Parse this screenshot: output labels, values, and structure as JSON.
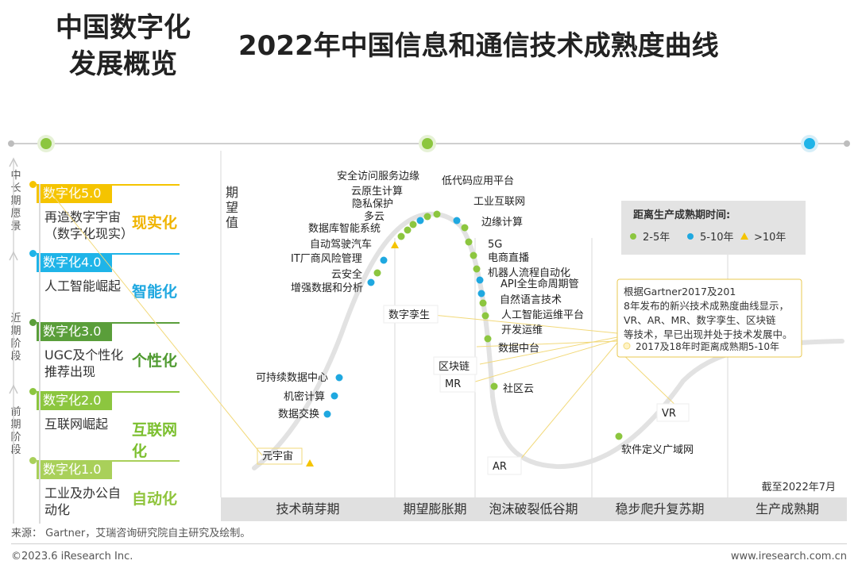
{
  "header": {
    "left_title_line1": "中国数字化",
    "left_title_line2": "发展概览",
    "main_title": "2022年中国信息和通信技术成熟度曲线"
  },
  "vertical_labels": {
    "mid_long": "中长期愿景",
    "near": "近期阶段",
    "early": "前期阶段"
  },
  "stages": [
    {
      "tag": "数字化5.0",
      "desc": "再造数字宇宙（数字化现实）",
      "keyword": "现实化",
      "color": "#f5c400",
      "kwcolor": "#f0b400"
    },
    {
      "tag": "数字化4.0",
      "desc": "人工智能崛起",
      "keyword": "智能化",
      "color": "#1fb4e8",
      "kwcolor": "#1fa8e0"
    },
    {
      "tag": "数字化3.0",
      "desc": "UGC及个性化推荐出现",
      "keyword": "个性化",
      "color": "#5a9e3a",
      "kwcolor": "#4f9a30"
    },
    {
      "tag": "数字化2.0",
      "desc": "互联网崛起",
      "keyword": "互联网化",
      "color": "#8cc63f",
      "kwcolor": "#7bbf2e"
    },
    {
      "tag": "数字化1.0",
      "desc": "工业及办公自动化",
      "keyword": "自动化",
      "color": "#a9d05a",
      "kwcolor": "#8fc43c"
    }
  ],
  "chart_data": {
    "type": "scatter",
    "title": "2022年中国信息和通信技术成熟度曲线",
    "ylabel": "期望值",
    "xlabel": "",
    "phases": [
      "技术萌芽期",
      "期望膨胀期",
      "泡沫破裂低谷期",
      "稳步爬升复苏期",
      "生产成熟期"
    ],
    "legend": {
      "title": "距离生产成熟期时间:",
      "items": [
        {
          "label": "2-5年",
          "color": "#8cc63f",
          "shape": "circle"
        },
        {
          "label": "5-10年",
          "color": "#1fa8e0",
          "shape": "circle"
        },
        {
          "label": ">10年",
          "color": "#f5c400",
          "shape": "triangle"
        }
      ]
    },
    "annotation": {
      "text": "根据Gartner2017及2018年发布的新兴技术成熟度曲线显示，VR、AR、MR、数字孪生、区块链等技术，早已出现并处于技术发展中。",
      "sub": "2017及18年时距离成熟期5-10年"
    },
    "as_of": "截至2022年7月",
    "points": [
      {
        "label": "元宇宙",
        "category": ">10年"
      },
      {
        "label": "数据交换",
        "category": "5-10年"
      },
      {
        "label": "机密计算",
        "category": "5-10年"
      },
      {
        "label": "可持续数据中心",
        "category": "5-10年"
      },
      {
        "label": "增强数据和分析",
        "category": "5-10年"
      },
      {
        "label": "云安全",
        "category": "2-5年"
      },
      {
        "label": "IT厂商风险管理",
        "category": "5-10年"
      },
      {
        "label": "自动驾驶汽车",
        "category": ">10年"
      },
      {
        "label": "数据库智能系统",
        "category": "2-5年"
      },
      {
        "label": "多云",
        "category": "2-5年"
      },
      {
        "label": "隐私保护",
        "category": "2-5年"
      },
      {
        "label": "云原生计算",
        "category": "5-10年"
      },
      {
        "label": "安全访问服务边缘",
        "category": "2-5年"
      },
      {
        "label": "低代码应用平台",
        "category": "2-5年"
      },
      {
        "label": "工业互联网",
        "category": "5-10年"
      },
      {
        "label": "边缘计算",
        "category": "2-5年"
      },
      {
        "label": "5G",
        "category": "2-5年"
      },
      {
        "label": "电商直播",
        "category": "2-5年"
      },
      {
        "label": "机器人流程自动化",
        "category": "2-5年"
      },
      {
        "label": "API全生命周期管",
        "category": "5-10年"
      },
      {
        "label": "自然语言技术",
        "category": "5-10年"
      },
      {
        "label": "人工智能运维平台",
        "category": "2-5年"
      },
      {
        "label": "开发运维",
        "category": "2-5年"
      },
      {
        "label": "数据中台",
        "category": "2-5年"
      },
      {
        "label": "社区云",
        "category": "2-5年"
      },
      {
        "label": "软件定义广域网",
        "category": "2-5年"
      }
    ],
    "boxed_labels": [
      "数字孪生",
      "区块链",
      "MR",
      "AR",
      "VR"
    ]
  },
  "footer": {
    "source": "来源：  Gartner，艾瑞咨询研究院自主研究及绘制。",
    "copyright": "©2023.6 iResearch Inc.",
    "website": "www.iresearch.com.cn"
  }
}
